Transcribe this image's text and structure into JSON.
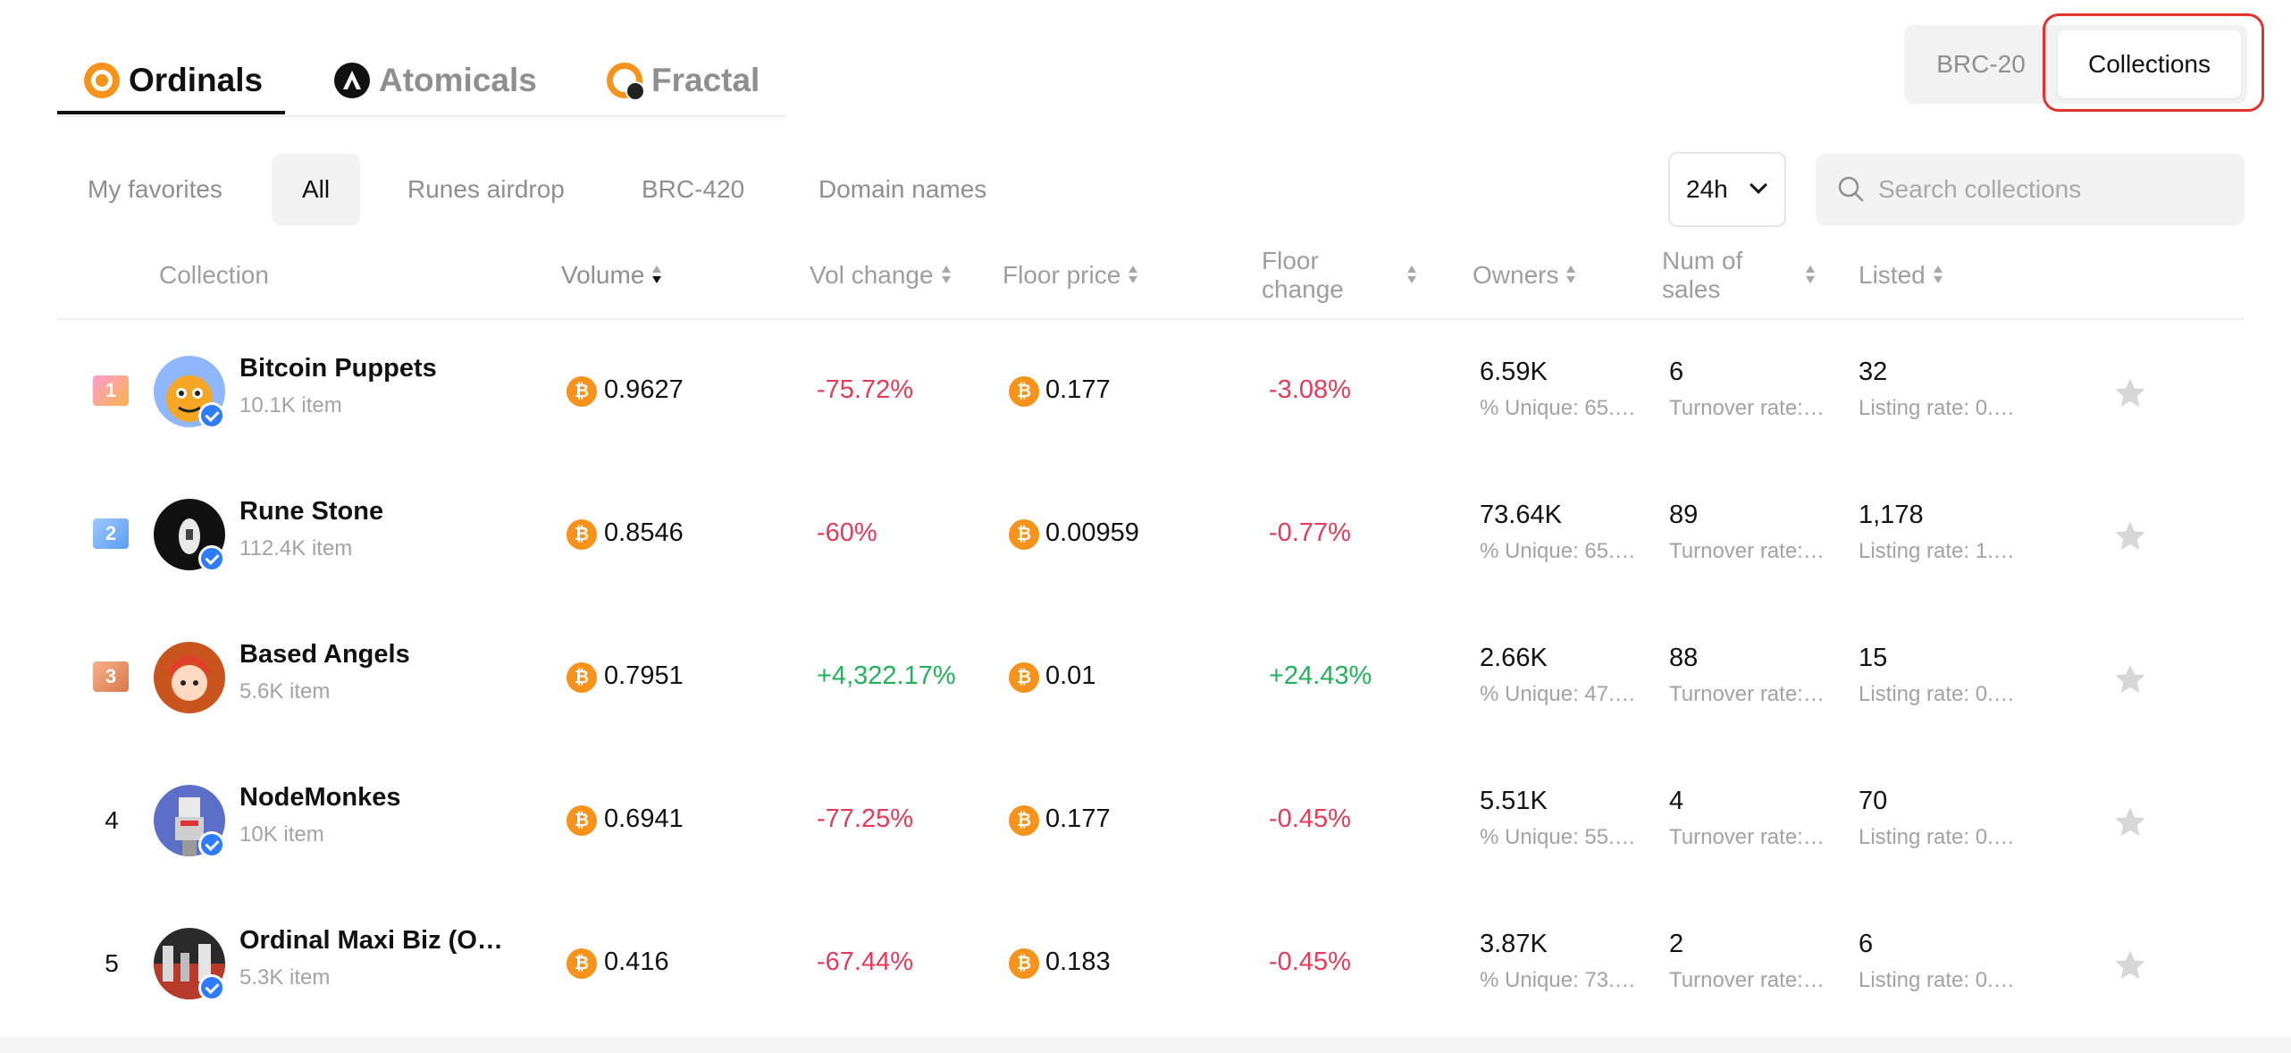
{
  "network_tabs": [
    {
      "label": "Ordinals",
      "icon": "ordinals-icon",
      "active": true
    },
    {
      "label": "Atomicals",
      "icon": "atomicals-icon",
      "active": false
    },
    {
      "label": "Fractal",
      "icon": "fractal-icon",
      "active": false
    }
  ],
  "switch": {
    "brc20": "BRC-20",
    "collections": "Collections"
  },
  "filters": [
    "My favorites",
    "All",
    "Runes airdrop",
    "BRC-420",
    "Domain names"
  ],
  "period": "24h",
  "search": {
    "placeholder": "Search collections",
    "value": ""
  },
  "columns": {
    "collection": "Collection",
    "volume": "Volume",
    "vol_change": "Vol change",
    "floor_price": "Floor price",
    "floor_change_1": "Floor",
    "floor_change_2": "change",
    "owners": "Owners",
    "num_sales_1": "Num of",
    "num_sales_2": "sales",
    "listed": "Listed"
  },
  "colors": {
    "accent": "#f7931a",
    "negative": "#e63a5a",
    "positive": "#1fb35a",
    "highlight": "#e5322d",
    "verified": "#2f7bff"
  },
  "rows": [
    {
      "rank": "1",
      "name": "Bitcoin Puppets",
      "items": "10.1K item",
      "volume": "0.9627",
      "vol_change": "-75.72%",
      "floor": "0.177",
      "floor_change": "-3.08%",
      "owners": "6.59K",
      "unique": "% Unique: 65.…",
      "sales": "6",
      "turnover": "Turnover rate:…",
      "listed": "32",
      "listing_rate": "Listing rate: 0.…"
    },
    {
      "rank": "2",
      "name": "Rune Stone",
      "items": "112.4K item",
      "volume": "0.8546",
      "vol_change": "-60%",
      "floor": "0.00959",
      "floor_change": "-0.77%",
      "owners": "73.64K",
      "unique": "% Unique: 65.…",
      "sales": "89",
      "turnover": "Turnover rate:…",
      "listed": "1,178",
      "listing_rate": "Listing rate: 1.…"
    },
    {
      "rank": "3",
      "name": "Based Angels",
      "items": "5.6K item",
      "volume": "0.7951",
      "vol_change": "+4,322.17%",
      "floor": "0.01",
      "floor_change": "+24.43%",
      "owners": "2.66K",
      "unique": "% Unique: 47.…",
      "sales": "88",
      "turnover": "Turnover rate:…",
      "listed": "15",
      "listing_rate": "Listing rate: 0.…"
    },
    {
      "rank": "4",
      "name": "NodeMonkes",
      "items": "10K item",
      "volume": "0.6941",
      "vol_change": "-77.25%",
      "floor": "0.177",
      "floor_change": "-0.45%",
      "owners": "5.51K",
      "unique": "% Unique: 55.…",
      "sales": "4",
      "turnover": "Turnover rate:…",
      "listed": "70",
      "listing_rate": "Listing rate: 0.…"
    },
    {
      "rank": "5",
      "name": "Ordinal Maxi Biz (O…",
      "items": "5.3K item",
      "volume": "0.416",
      "vol_change": "-67.44%",
      "floor": "0.183",
      "floor_change": "-0.45%",
      "owners": "3.87K",
      "unique": "% Unique: 73.…",
      "sales": "2",
      "turnover": "Turnover rate:…",
      "listed": "6",
      "listing_rate": "Listing rate: 0.…"
    }
  ]
}
